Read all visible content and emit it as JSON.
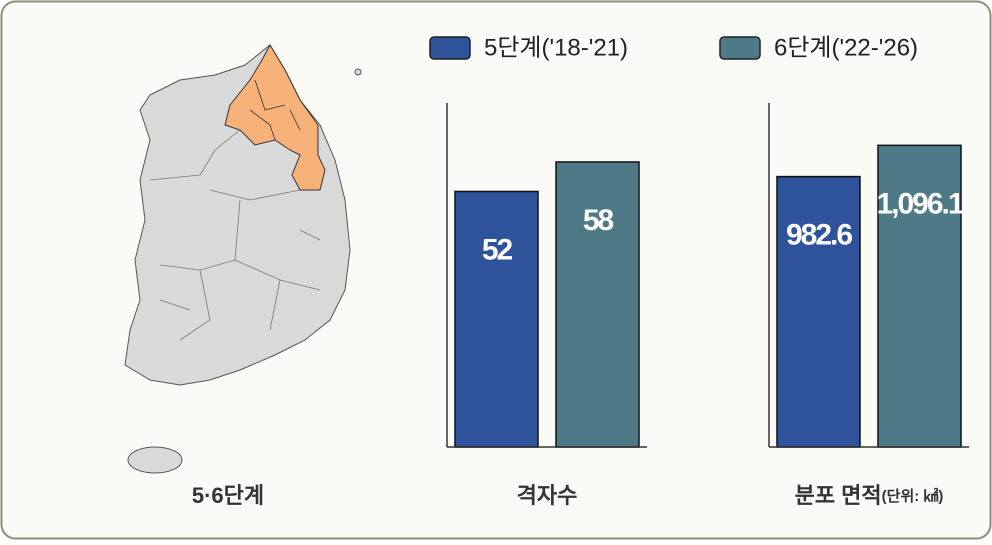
{
  "map": {
    "label": "5·6단계"
  },
  "chart_data": [
    {
      "type": "bar",
      "xlabel": "격자수",
      "ylim": [
        0,
        70
      ],
      "series": [
        {
          "name": "5단계('18-'21)",
          "color": "#2f539b",
          "values": [
            52
          ]
        },
        {
          "name": "6단계('22-'26)",
          "color": "#4e7a88",
          "values": [
            58
          ]
        }
      ]
    },
    {
      "type": "bar",
      "xlabel": "분포 면적",
      "unit": "(단위: ㎢)",
      "ylim": [
        0,
        1250
      ],
      "series": [
        {
          "values": [
            982.6
          ]
        },
        {
          "values": [
            1096.1
          ],
          "value_labels": [
            "1,096.1"
          ]
        }
      ]
    }
  ]
}
